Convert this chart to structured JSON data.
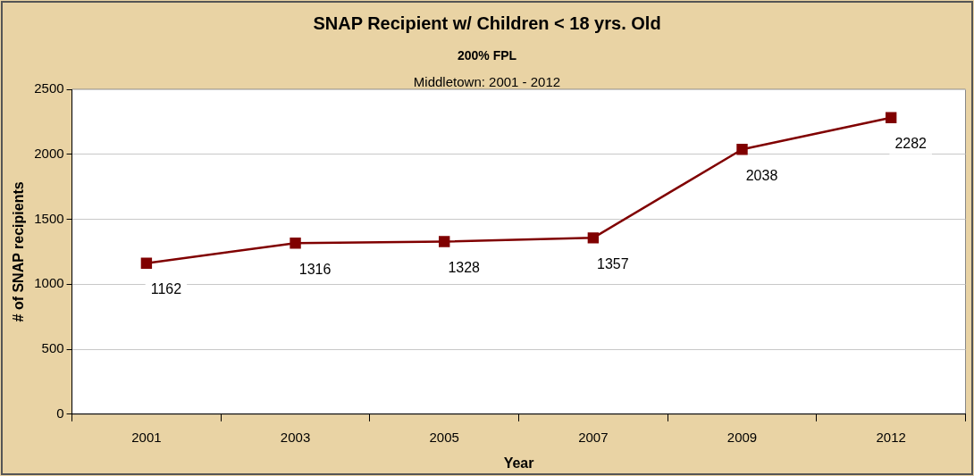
{
  "chart_data": {
    "type": "line",
    "title": "SNAP Recipient w/ Children < 18 yrs. Old",
    "subtitle": "200% FPL",
    "annotations": [
      "Middletown: 2001 - 2012"
    ],
    "xlabel": "Year",
    "ylabel": "# of SNAP recipients",
    "categories": [
      "2001",
      "2003",
      "2005",
      "2007",
      "2009",
      "2012"
    ],
    "series": [
      {
        "color": "#800000",
        "values": [
          1162,
          1316,
          1328,
          1357,
          2038,
          2282
        ]
      }
    ],
    "ylim": [
      0,
      2500
    ],
    "yticks": [
      0,
      500,
      1000,
      1500,
      2000,
      2500
    ],
    "grid": "y",
    "legend": false,
    "marker": "square",
    "line_style": "solid",
    "data_labels": true
  }
}
